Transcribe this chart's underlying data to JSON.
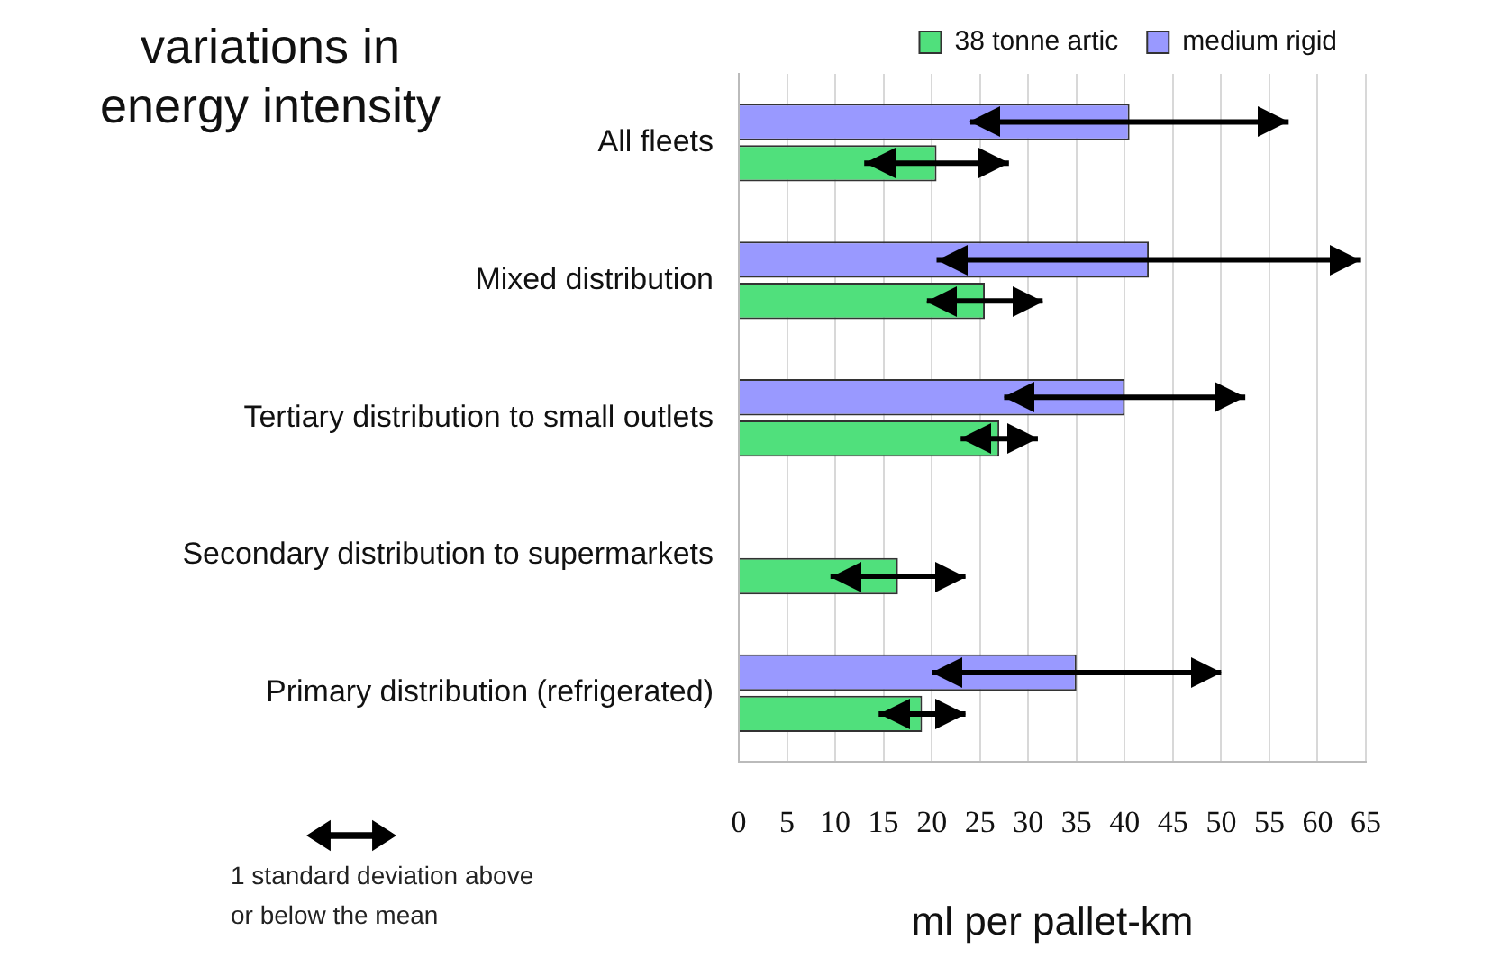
{
  "chart_data": {
    "type": "bar",
    "orientation": "horizontal",
    "title": "variations in energy intensity",
    "xlabel": "ml per pallet-km",
    "categories": [
      "All fleets",
      "Mixed distribution",
      "Tertiary distribution to small outlets",
      "Secondary distribution to supermarkets",
      "Primary distribution (refrigerated)"
    ],
    "series": [
      {
        "name": "38 tonne artic",
        "color": "#50e07c",
        "values": [
          20.5,
          25.5,
          27,
          16.5,
          19
        ],
        "errors": [
          7.5,
          6,
          4,
          7,
          4.5
        ]
      },
      {
        "name": "medium rigid",
        "color": "#9999ff",
        "values": [
          40.5,
          42.5,
          40,
          null,
          35
        ],
        "errors": [
          16.5,
          22,
          12.5,
          null,
          15
        ]
      }
    ],
    "xlim": [
      0,
      65
    ],
    "xticks": [
      0,
      5,
      10,
      15,
      20,
      25,
      30,
      35,
      40,
      45,
      50,
      55,
      60,
      65
    ],
    "grid": "x",
    "legend": "top",
    "annotations": [
      "1 standard deviation above or below the mean"
    ]
  }
}
